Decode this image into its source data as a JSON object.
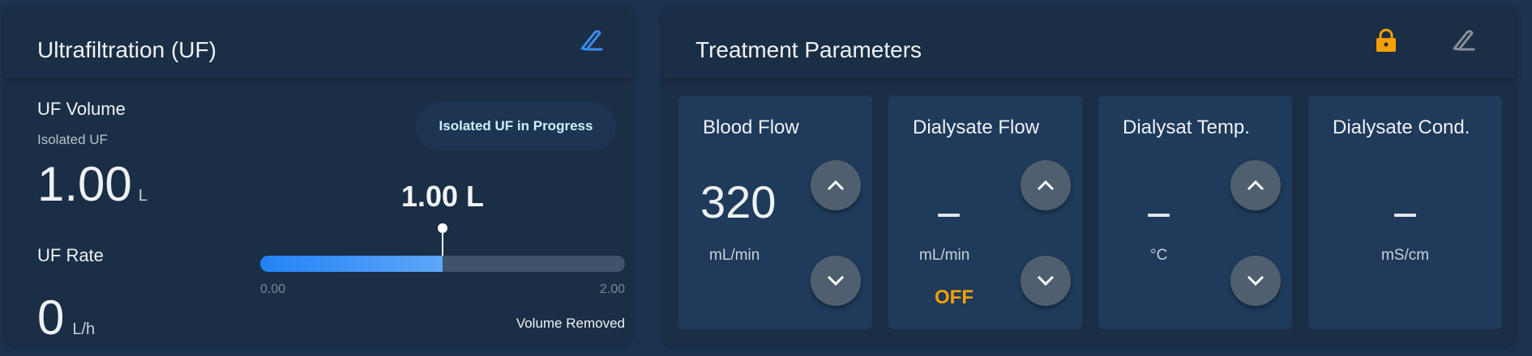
{
  "uf_panel": {
    "title": "Ultrafiltration (UF)",
    "edit_icon": "pencil-icon",
    "accent": "#3b8cf0",
    "volume_label": "UF Volume",
    "volume_mode": "Isolated UF",
    "volume_value": "1.00",
    "volume_unit": "L",
    "rate_label": "UF Rate",
    "rate_value": "0",
    "rate_unit": "L/h",
    "status_badge": "Isolated UF in Progress",
    "progress_label": "1.00 L",
    "progress_fraction": 0.5,
    "progress_min": "0.00",
    "progress_max": "2.00",
    "progress_caption": "Volume Removed"
  },
  "treatment_panel": {
    "title": "Treatment Parameters",
    "lock_icon": "lock-icon",
    "lock_color": "#f5a000",
    "edit_icon": "pencil-icon",
    "cards": [
      {
        "title": "Blood Flow",
        "value": "320",
        "unit": "mL/min"
      },
      {
        "title": "Dialysate Flow",
        "value": "–",
        "unit": "mL/min",
        "status": "OFF"
      },
      {
        "title": "Dialysat Temp.",
        "value": "–",
        "unit": "°C"
      },
      {
        "title": "Dialysate Cond.",
        "value": "–",
        "unit": "mS/cm"
      }
    ]
  }
}
